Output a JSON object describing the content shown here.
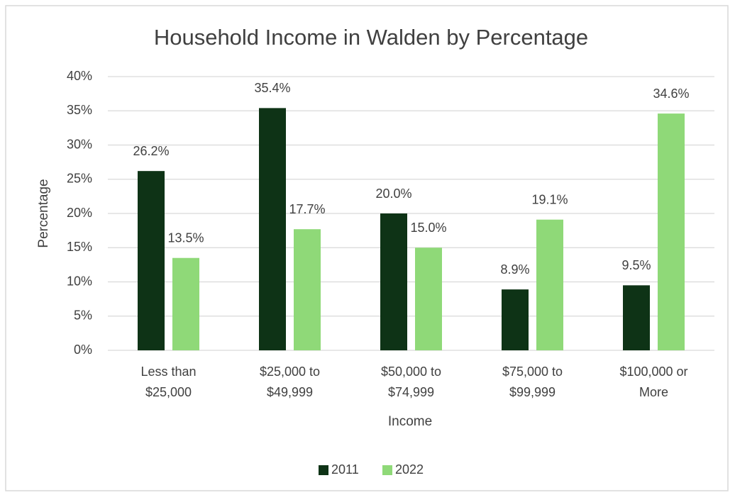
{
  "chart_data": {
    "type": "bar",
    "title": "Household Income in Walden by Percentage",
    "x_label": "Income",
    "y_label": "Percentage",
    "categories": [
      [
        "Less than",
        "$25,000"
      ],
      [
        "$25,000 to",
        "$49,999"
      ],
      [
        "$50,000 to",
        "$74,999"
      ],
      [
        "$75,000 to",
        "$99,999"
      ],
      [
        "$100,000 or",
        "More"
      ]
    ],
    "series": [
      {
        "name": "2011",
        "color": "#0e3316",
        "values": [
          26.2,
          35.4,
          20.0,
          8.9,
          9.5
        ],
        "value_labels": [
          "26.2%",
          "35.4%",
          "20.0%",
          "8.9%",
          "9.5%"
        ]
      },
      {
        "name": "2022",
        "color": "#8fd978",
        "values": [
          13.5,
          17.7,
          15.0,
          19.1,
          34.6
        ],
        "value_labels": [
          "13.5%",
          "17.7%",
          "15.0%",
          "19.1%",
          "34.6%"
        ]
      }
    ],
    "ylim": [
      0,
      40
    ],
    "yticks": [
      {
        "value": 0,
        "label": "0%"
      },
      {
        "value": 5,
        "label": "5%"
      },
      {
        "value": 10,
        "label": "10%"
      },
      {
        "value": 15,
        "label": "15%"
      },
      {
        "value": 20,
        "label": "20%"
      },
      {
        "value": 25,
        "label": "25%"
      },
      {
        "value": 30,
        "label": "30%"
      },
      {
        "value": 35,
        "label": "35%"
      },
      {
        "value": 40,
        "label": "40%"
      }
    ],
    "grid": true,
    "legend": "bottom"
  }
}
